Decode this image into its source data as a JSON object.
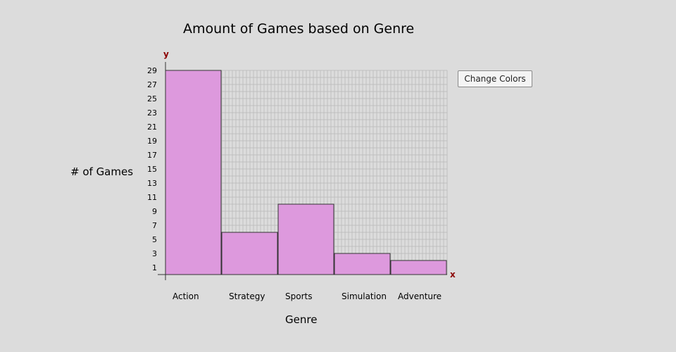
{
  "controls": {
    "change_colors_label": "Change Colors"
  },
  "colors": {
    "bar_fill": "#dd99dd",
    "bar_stroke": "#333333",
    "grid": "#b8b8b8",
    "axis_letter": "#8b0000",
    "background": "#dcdcdc"
  },
  "chart_data": {
    "type": "bar",
    "title": "Amount of Games based on Genre",
    "xlabel": "Genre",
    "ylabel": "# of Games",
    "x_axis_letter": "x",
    "y_axis_letter": "y",
    "categories": [
      "Action",
      "Strategy",
      "Sports",
      "Simulation",
      "Adventure"
    ],
    "values": [
      29,
      6,
      10,
      3,
      2
    ],
    "ylim": [
      0,
      29
    ],
    "y_tick_labels": [
      1,
      3,
      5,
      7,
      9,
      11,
      13,
      15,
      17,
      19,
      21,
      23,
      25,
      27,
      29
    ],
    "grid": true
  }
}
